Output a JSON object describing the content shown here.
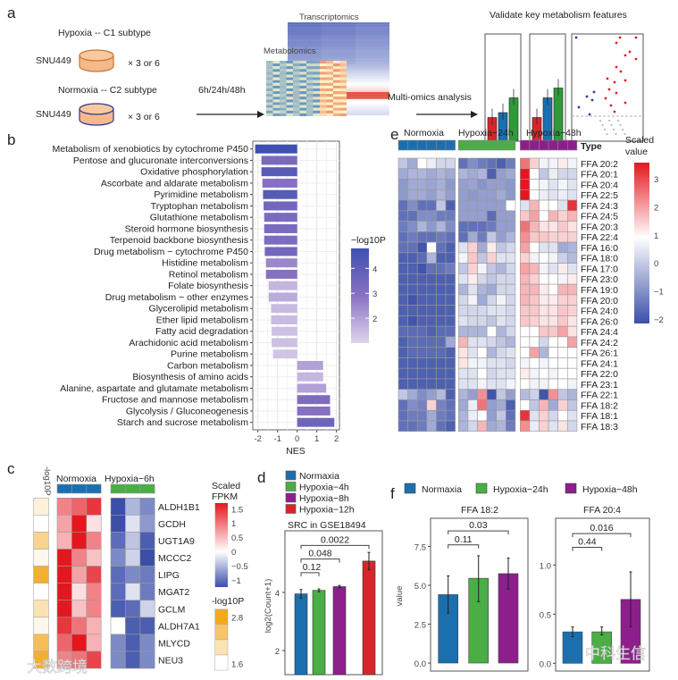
{
  "panel_labels": {
    "a": "a",
    "b": "b",
    "c": "c",
    "d": "d",
    "e": "e",
    "f": "f"
  },
  "colors": {
    "normoxia": "#1b6fae",
    "hypoxia_4h": "#4aad46",
    "hypoxia_8h": "#8c1f8c",
    "hypoxia_12h": "#d6262b",
    "hypoxia_24h": "#4aad46",
    "hypoxia_48h": "#8c1f8c",
    "nes_low": "#ddd5ec",
    "nes_mid": "#8a72c2",
    "nes_high": "#3e50b0",
    "heat_low": "#3b4fa8",
    "heat_mid": "#ffffff",
    "heat_high": "#e4171f",
    "pval_low": "#ffffff",
    "pval_high": "#f3a81d"
  },
  "schematic": {
    "hypoxia_label": "Hypoxia -- C1 subtype",
    "normoxia_label": "Normoxia -- C2 subtype",
    "cell_line": "SNU449",
    "replicates": "× 3 or 6",
    "timepoints": "6h/24h/48h",
    "transcriptomics": "Transcriptomics",
    "metabolomics": "Metabolomics",
    "analysis": "Multi-omics analysis",
    "validate": "Validate key metabolism features"
  },
  "watermarks": [
    "大数跨境",
    "中科生信"
  ],
  "chart_data": [
    {
      "id": "b",
      "type": "bar",
      "orientation": "horizontal",
      "xlabel": "NES",
      "xlim": [
        -2.3,
        2.1
      ],
      "xticks": [
        -2,
        -1,
        0,
        1,
        2
      ],
      "color_legend": {
        "title": "−log10P",
        "ticks": [
          4,
          3,
          2
        ],
        "range": [
          1,
          4.8
        ]
      },
      "categories": [
        "Metabolism of xenobiotics by cytochrome P450",
        "Pentose and glucuronate interconversions",
        "Oxidative phosphorylation",
        "Ascorbate and aldarate metabolism",
        "Pyrimidine metabolism",
        "Tryptophan metabolism",
        "Glutathione metabolism",
        "Steroid hormone biosynthesis",
        "Terpenoid backbone biosynthesis",
        "Drug metabolism − cytochrome P450",
        "Histidine metabolism",
        "Retinol metabolism",
        "Folate biosynthesis",
        "Drug metabolism − other enzymes",
        "Glycerolipid metabolism",
        "Ether lipid metabolism",
        "Fatty acid degradation",
        "Arachidonic acid metabolism",
        "Purine metabolism",
        "Carbon metabolism",
        "Biosynthesis of amino acids",
        "Alanine, aspartate and glutamate metabolism",
        "Fructose and mannose metabolism",
        "Glycolysis / Gluconeogenesis",
        "Starch and sucrose metabolism"
      ],
      "values": [
        -2.14,
        -1.82,
        -1.82,
        -1.77,
        -1.74,
        -1.71,
        -1.68,
        -1.68,
        -1.68,
        -1.65,
        -1.59,
        -1.59,
        -1.45,
        -1.45,
        -1.33,
        -1.33,
        -1.3,
        -1.3,
        -1.23,
        1.32,
        1.32,
        1.47,
        1.67,
        1.68,
        1.89
      ],
      "neg_log10p": [
        4.8,
        3.3,
        4.2,
        3.0,
        4.2,
        3.5,
        3.3,
        3.3,
        3.2,
        3.5,
        2.5,
        3.0,
        1.6,
        1.8,
        1.5,
        1.5,
        1.4,
        1.4,
        1.3,
        2.0,
        1.6,
        2.0,
        3.2,
        3.0,
        3.6
      ]
    },
    {
      "id": "c",
      "type": "heatmap",
      "groups": [
        "Normoxia",
        "Hypoxia−6h"
      ],
      "side_label": "-log10P",
      "rows": [
        "ALDH1B1",
        "GCDH",
        "UGT1A9",
        "MCCC2",
        "LIPG",
        "MGAT2",
        "GCLM",
        "ALDH7A1",
        "MLYCD",
        "NEU3"
      ],
      "values": [
        [
          0.8,
          1.0,
          1.3,
          -1.2,
          -0.5,
          -0.8
        ],
        [
          0.6,
          1.5,
          0.2,
          -1.2,
          -0.2,
          -0.7
        ],
        [
          0.5,
          1.5,
          0.8,
          -1.0,
          -0.4,
          -1.1
        ],
        [
          1.5,
          0.8,
          0.4,
          -0.8,
          -0.3,
          -1.2
        ],
        [
          1.5,
          0.6,
          1.2,
          -1.0,
          -0.8,
          -0.9
        ],
        [
          1.5,
          0.2,
          0.8,
          -1.0,
          -0.2,
          -0.9
        ],
        [
          1.5,
          0.4,
          0.8,
          -1.1,
          -1.0,
          -0.3
        ],
        [
          1.3,
          0.9,
          0.5,
          0.0,
          -1.1,
          -1.1
        ],
        [
          1.0,
          1.5,
          0.5,
          -0.8,
          -1.1,
          -0.8
        ],
        [
          0.8,
          0.9,
          1.2,
          -0.8,
          -1.1,
          -0.8
        ]
      ],
      "neg_log10p": [
        1.8,
        1.6,
        2.2,
        1.7,
        2.7,
        1.6,
        2.0,
        1.7,
        2.5,
        2.7
      ],
      "legend_fpkm": {
        "title": [
          "Scaled",
          "FPKM"
        ],
        "ticks": [
          "1.5",
          "1",
          "0.5",
          "0",
          "−0.5",
          "−1"
        ],
        "tick_values": [
          1.5,
          1,
          0.5,
          0,
          -0.5,
          -1
        ],
        "range": [
          -1.25,
          1.7
        ]
      },
      "legend_p": {
        "title": "-log10P",
        "ticks": [
          "2.8",
          "1.6"
        ]
      }
    },
    {
      "id": "d",
      "type": "bar",
      "title": "SRC in GSE18494",
      "ylabel": "log2(Count+1)",
      "ylim": [
        1.15,
        6.18
      ],
      "yticks": [
        2,
        4
      ],
      "categories": [
        "Normaxia",
        "Hypoxia−4h",
        "Hypoxia−8h",
        "Hypoxia−12h"
      ],
      "values": [
        3.95,
        4.07,
        4.2,
        5.08
      ],
      "errors": [
        0.15,
        0.05,
        0.04,
        0.3
      ],
      "comparisons": [
        {
          "from": 0,
          "to": 1,
          "label": "0.12",
          "y": 4.68
        },
        {
          "from": 0,
          "to": 2,
          "label": "0.048",
          "y": 5.15
        },
        {
          "from": 0,
          "to": 3,
          "label": "0.0022",
          "y": 5.62
        }
      ]
    },
    {
      "id": "e",
      "type": "heatmap",
      "groups": [
        "Normoxia",
        "Hypoxia−24h",
        "Hypoxia−48h"
      ],
      "annotation_label": "Type",
      "legend": {
        "title": [
          "Scaled",
          "value"
        ],
        "ticks": [
          "3",
          "2",
          "1",
          "0",
          "−1",
          "−2"
        ],
        "tick_values": [
          3,
          2,
          1,
          0,
          -1,
          -2
        ],
        "range": [
          -2.2,
          3.6
        ]
      },
      "rows": [
        "FFA 20:2",
        "FFA 20:1",
        "FFA 20:4",
        "FFA 22:5",
        "FFA 24:3",
        "FFA 24:5",
        "FFA 20:3",
        "FFA 22:4",
        "FFA 16:0",
        "FFA 18:0",
        "FFA 17:0",
        "FFA 23:0",
        "FFA 19:0",
        "FFA 20:0",
        "FFA 24:0",
        "FFA 26:0",
        "FFA 24:4",
        "FFA 24:2",
        "FFA 26:1",
        "FFA 24:1",
        "FFA 22:0",
        "FFA 23:1",
        "FFA 22:1",
        "FFA 18:2",
        "FFA 18:1",
        "FFA 18:3"
      ],
      "values": [
        [
          0,
          -0.5,
          1,
          0.7,
          0.3,
          0.3,
          -1.5,
          -1,
          -1.3,
          -1.5,
          -1.8,
          -1.3,
          2.5,
          1.5,
          0.8,
          0.8,
          1.2,
          0.8
        ],
        [
          -0.5,
          -0.3,
          -0.3,
          -0.5,
          -0.3,
          -0.5,
          -0.3,
          -0.5,
          -0.3,
          -1.8,
          -0.7,
          -0.5,
          3.5,
          1,
          0,
          0.7,
          0.3,
          0.3
        ],
        [
          -0.8,
          -0.5,
          -0.5,
          -0.6,
          -0.4,
          -0.8,
          -0.7,
          -0.6,
          -0.9,
          -0.7,
          -0.7,
          -0.8,
          3.5,
          1,
          0.8,
          0.5,
          0.8,
          0.5
        ],
        [
          -0.8,
          -0.5,
          -0.5,
          -0.7,
          -0.3,
          -0.7,
          -0.7,
          -0.8,
          -0.7,
          -0.7,
          -0.5,
          -0.8,
          3.6,
          1,
          0.7,
          0.5,
          0.7,
          0.5
        ],
        [
          -1.5,
          -1,
          -1.5,
          -1.5,
          0,
          -1.8,
          -0.7,
          -0.7,
          -0.7,
          -0.7,
          -0.7,
          1,
          0.5,
          1.8,
          1,
          1,
          0.5,
          3.2
        ],
        [
          -1.5,
          -1.5,
          -1,
          -1,
          -1.3,
          -1.3,
          -0.7,
          -0.7,
          -0.7,
          -1.6,
          -0.7,
          -0.7,
          1.6,
          2,
          1,
          1.8,
          1.5,
          1.8
        ],
        [
          -1.3,
          -1,
          -0.3,
          -0.8,
          -0.3,
          -1,
          -1.5,
          -1.5,
          -1.5,
          -1.3,
          -0.7,
          -0.7,
          2.5,
          1.8,
          1.3,
          1.3,
          1.6,
          1.3
        ],
        [
          -1.5,
          -1.3,
          -1.5,
          -1.5,
          -1.3,
          -1.5,
          -1.5,
          -0.5,
          -1.3,
          0,
          -0.7,
          -0.3,
          2.2,
          1.6,
          1.6,
          1.5,
          1.5,
          1.5
        ],
        [
          -1.5,
          -1.5,
          -2,
          1,
          -1.5,
          -1.8,
          0.5,
          1.5,
          -0.5,
          1.2,
          0,
          0.3,
          2,
          1,
          0.5,
          0.5,
          -0.5,
          -0.3
        ],
        [
          -1.8,
          -1.8,
          -1.6,
          -0.3,
          -1.8,
          -1.8,
          0.8,
          1.6,
          0,
          1.5,
          0.5,
          0.5,
          1.5,
          0.8,
          1,
          0.8,
          0.2,
          -0.2
        ],
        [
          -1.8,
          -1.8,
          -2,
          -1.5,
          -1.5,
          -1.3,
          0,
          1.5,
          0.8,
          0,
          -0.3,
          0.3,
          2,
          1.8,
          0.8,
          0.5,
          1.2,
          0.5
        ],
        [
          -1.8,
          -1.8,
          -1.8,
          -1.8,
          -1.8,
          -1.8,
          0.5,
          1.2,
          0.3,
          0,
          0.3,
          0.3,
          1.8,
          1.5,
          1,
          1,
          0.8,
          1.2
        ],
        [
          -1.8,
          -1.8,
          -1.8,
          -1.8,
          -1.8,
          -1.8,
          -0.3,
          0.5,
          -0.3,
          -0.5,
          0.3,
          0.3,
          1.8,
          1.8,
          1.2,
          1,
          1.8,
          1.8
        ],
        [
          -1.8,
          -2,
          -1.8,
          -1.8,
          -1.8,
          -1.8,
          0.3,
          0.8,
          -0.5,
          0.3,
          0.8,
          0.3,
          1.8,
          1.6,
          1.2,
          1.2,
          1.5,
          1.5
        ],
        [
          -1.8,
          -1.8,
          -1.8,
          -1.8,
          -1.8,
          -1.8,
          0.3,
          0.3,
          0.3,
          0.5,
          0.5,
          0.3,
          1.6,
          1.6,
          1.3,
          1.3,
          1.6,
          1.5
        ],
        [
          -1.8,
          -2,
          -1.8,
          -1.8,
          -1.8,
          -1.8,
          0.5,
          0.3,
          0.3,
          0,
          0.5,
          0.3,
          1.6,
          1.5,
          1.3,
          1.3,
          1.6,
          1.3
        ],
        [
          -1.6,
          -1.6,
          -1.6,
          -1.8,
          -1.6,
          -1.6,
          -0.3,
          -0.3,
          -0.3,
          1,
          -0.3,
          0.3,
          1,
          1,
          1.6,
          1.6,
          2,
          1.3
        ],
        [
          -1.8,
          -1.6,
          -1.6,
          -1.6,
          -1.6,
          -0.5,
          1.8,
          0.5,
          0.5,
          0.3,
          0,
          -0.3,
          1,
          1,
          0.3,
          1,
          1,
          2
        ],
        [
          -1.8,
          -1.6,
          -1.6,
          -1.6,
          -1.6,
          -1.8,
          1.3,
          0.5,
          1,
          -0.3,
          0.3,
          0.5,
          1,
          2,
          -0.3,
          1,
          1,
          1
        ],
        [
          -1.8,
          -1.8,
          -1.8,
          -1.8,
          -1.8,
          -1.8,
          1.3,
          0.8,
          0.8,
          0.5,
          0.5,
          0.3,
          0.8,
          1,
          0.8,
          1,
          1,
          1
        ],
        [
          -1.8,
          -1.8,
          -1.8,
          -1.8,
          -1.8,
          -1.8,
          0.5,
          0.5,
          1,
          0.3,
          0.5,
          0.5,
          1.2,
          0.8,
          1,
          0.8,
          1,
          1
        ],
        [
          -1.8,
          -1.8,
          -1.8,
          -1.8,
          -1.8,
          -1.8,
          0.5,
          0.5,
          0.8,
          0.5,
          0.5,
          0.8,
          1,
          0.8,
          0.8,
          1,
          1,
          0.8
        ],
        [
          0,
          -0.5,
          -1,
          -0.7,
          -0.2,
          -1.8,
          -0.3,
          -0.7,
          2.2,
          -2,
          0,
          -0.7,
          -0.2,
          0.2,
          -2,
          2.2,
          0,
          -0.3
        ],
        [
          -1.5,
          -1,
          -1.2,
          1.5,
          -1.2,
          -1.5,
          -0.5,
          0.7,
          2.5,
          -0.7,
          -0.5,
          -1.8,
          1,
          0,
          1.8,
          -0.5,
          1.5,
          0
        ],
        [
          -1.5,
          -1.3,
          -1.3,
          -0.5,
          -1.3,
          -1.5,
          -0.3,
          0.7,
          1,
          -0.7,
          0,
          -1.5,
          3.2,
          0.5,
          1.5,
          0.3,
          1,
          0.5
        ],
        [
          -1.5,
          -1.5,
          -1.3,
          -0.5,
          -1.5,
          -1.8,
          -0.3,
          0.3,
          1.8,
          -0.5,
          -0.3,
          -1.3,
          2.2,
          0.7,
          1.5,
          0.5,
          1.3,
          0.3
        ]
      ]
    },
    {
      "id": "f",
      "type": "bar",
      "legend": [
        "Normaxia",
        "Hypoxia−24h",
        "Hypoxia−48h"
      ],
      "ylabel": "value",
      "facets": [
        {
          "title": "FFA 18:2",
          "ylim": [
            -0.5,
            9.3
          ],
          "yticks": [
            "0.0",
            "2.5",
            "5.0",
            "7.5"
          ],
          "ytick_values": [
            0,
            2.5,
            5,
            7.5
          ],
          "values": [
            4.4,
            5.45,
            5.75
          ],
          "err_low": [
            3.2,
            3.95,
            4.75
          ],
          "err_high": [
            5.6,
            6.9,
            6.75
          ],
          "comparisons": [
            {
              "from": 0,
              "to": 1,
              "label": "0.11",
              "y": 7.6
            },
            {
              "from": 0,
              "to": 2,
              "label": "0.03",
              "y": 8.5
            }
          ]
        },
        {
          "title": "FFA 20:4",
          "ylim": [
            -0.08,
            1.47
          ],
          "yticks": [
            "0.0",
            "0.5",
            "1.0"
          ],
          "ytick_values": [
            0,
            0.5,
            1
          ],
          "values": [
            0.32,
            0.32,
            0.65
          ],
          "err_low": [
            0.27,
            0.29,
            0.37
          ],
          "err_high": [
            0.37,
            0.37,
            0.93
          ],
          "comparisons": [
            {
              "from": 0,
              "to": 1,
              "label": "0.44",
              "y": 1.18
            },
            {
              "from": 0,
              "to": 2,
              "label": "0.016",
              "y": 1.32
            }
          ]
        }
      ]
    }
  ]
}
